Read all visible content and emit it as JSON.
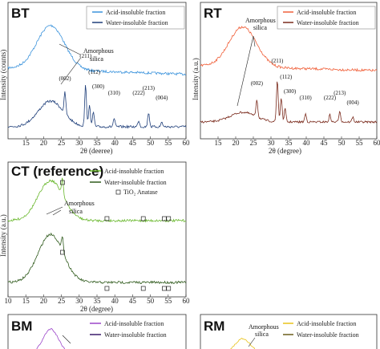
{
  "chart_data": [
    {
      "panel": "BT",
      "type": "line",
      "title": "BT",
      "xlabel": "2θ (deeree)",
      "ylabel": "Intensity (counts)",
      "xlim": [
        10,
        60
      ],
      "x_ticks": [
        "15",
        "20",
        "25",
        "30",
        "35",
        "40",
        "45",
        "50",
        "55",
        "60"
      ],
      "series": [
        {
          "name": "Acid-insoluble fraction",
          "color": "#3b93dc"
        },
        {
          "name": "Water-insoluble fraction",
          "color": "#1f3f7a"
        }
      ],
      "annotation": "Amorphous\nsilica",
      "peak_labels": [
        {
          "label": "(002)",
          "x": 26.0
        },
        {
          "label": "(211)",
          "x": 31.8
        },
        {
          "label": "(112)",
          "x": 32.9
        },
        {
          "label": "(300)",
          "x": 34.0
        },
        {
          "label": "(310)",
          "x": 39.8
        },
        {
          "label": "(222)",
          "x": 46.7
        },
        {
          "label": "(213)",
          "x": 49.5
        },
        {
          "label": "(004)",
          "x": 53.2
        }
      ]
    },
    {
      "panel": "RT",
      "type": "line",
      "title": "RT",
      "xlabel": "2θ (degree)",
      "ylabel": "Intensity (a.u.)",
      "xlim": [
        10,
        60
      ],
      "x_ticks": [
        "15",
        "20",
        "25",
        "30",
        "35",
        "40",
        "45",
        "50",
        "55",
        "60"
      ],
      "series": [
        {
          "name": "Acid-insoluble fraction",
          "color": "#f0603a"
        },
        {
          "name": "Water-insoluble fraction",
          "color": "#7a2a1c"
        }
      ],
      "annotation": "Amorphous\nsilica",
      "peak_labels": [
        {
          "label": "(002)",
          "x": 26.0
        },
        {
          "label": "(211)",
          "x": 31.8
        },
        {
          "label": "(112)",
          "x": 32.9
        },
        {
          "label": "(300)",
          "x": 34.0
        },
        {
          "label": "(310)",
          "x": 39.8
        },
        {
          "label": "(222)",
          "x": 46.7
        },
        {
          "label": "(213)",
          "x": 49.5
        },
        {
          "label": "(004)",
          "x": 53.2
        }
      ]
    },
    {
      "panel": "CT",
      "type": "line",
      "title": "CT (reference)",
      "xlabel": "2θ (degree)",
      "ylabel": "Intensity (a.u.)",
      "xlim": [
        10,
        60
      ],
      "x_ticks": [
        "10",
        "15",
        "20",
        "25",
        "30",
        "35",
        "40",
        "45",
        "50",
        "55",
        "60"
      ],
      "series": [
        {
          "name": "Acid-insoluble fraction",
          "color": "#6ab82e"
        },
        {
          "name": "Water-insoluble fraction",
          "color": "#2f5a1c"
        }
      ],
      "annotation": "Amorphous\nsilica",
      "marker_legend": "TiO₂ Anatase",
      "anatase_x": [
        25.3,
        37.8,
        48.0,
        53.9,
        55.1
      ]
    },
    {
      "panel": "BM",
      "type": "line",
      "title": "BM",
      "series": [
        {
          "name": "Acid-insoluble fraction",
          "color": "#9b45c9"
        },
        {
          "name": "Water-insoluble fraction",
          "color": "#3a1a6a"
        }
      ]
    },
    {
      "panel": "RM",
      "type": "line",
      "title": "RM",
      "series": [
        {
          "name": "Acid-insoluble fraction",
          "color": "#e8c21a"
        },
        {
          "name": "Water-insoluble fraction",
          "color": "#6b5e1a"
        }
      ],
      "annotation": "Amorphous\nsilica"
    }
  ]
}
